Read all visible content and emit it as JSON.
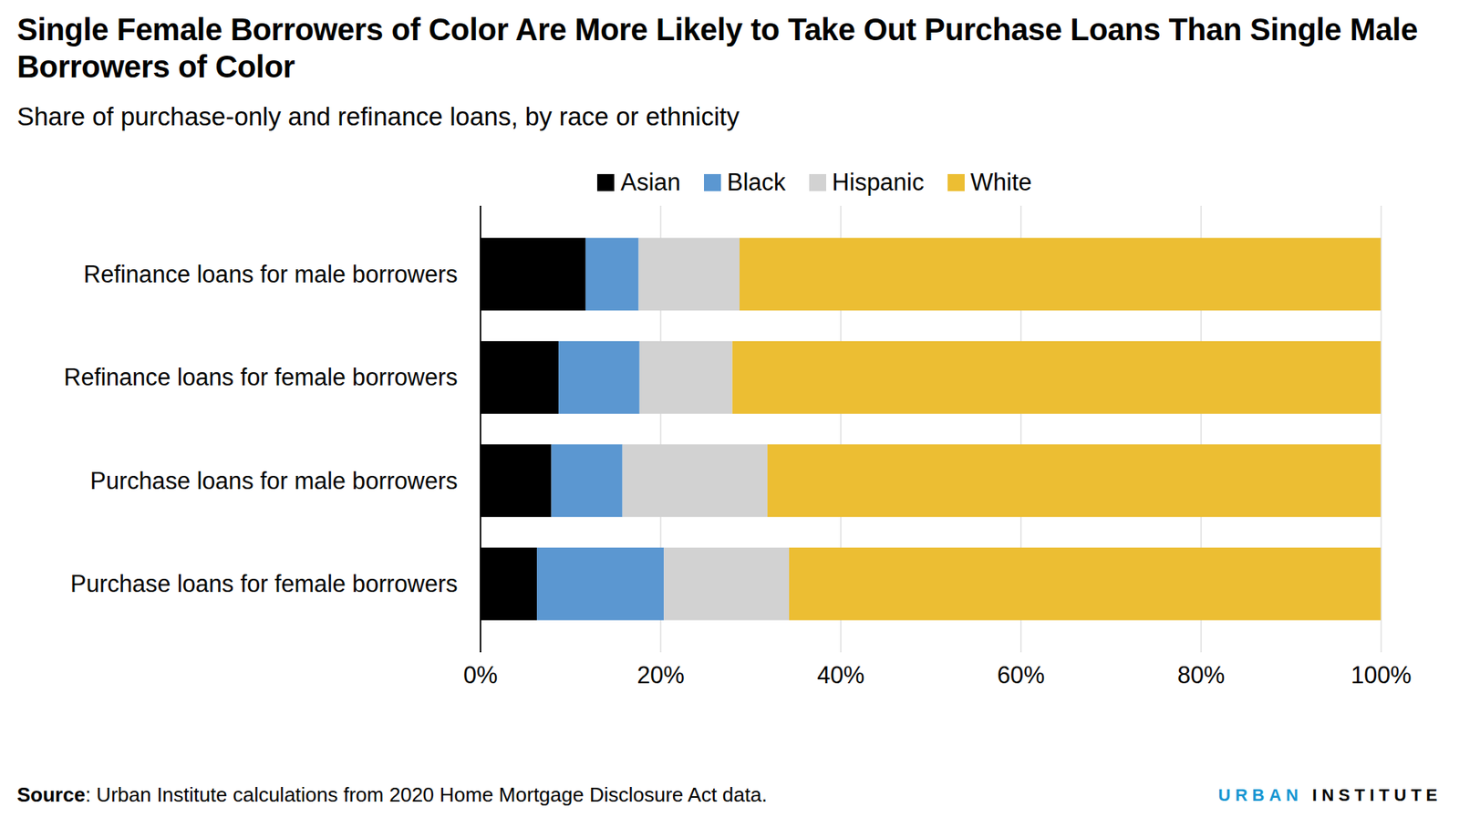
{
  "chart_data": {
    "type": "bar",
    "orientation": "horizontal",
    "stacked": true,
    "grid": true,
    "title": "Single Female Borrowers of Color Are More Likely to Take Out Purchase Loans Than Single Male Borrowers of Color",
    "subtitle": "Share of purchase-only and refinance loans, by race or ethnicity",
    "source": "Source: Urban Institute calculations from 2020 Home Mortgage Disclosure Act data.",
    "logo": "URBAN INSTITUTE",
    "legend": "top",
    "categories": [
      "Refinance loans for male borrowers",
      "Refinance loans for female borrowers",
      "Purchase loans for male borrowers",
      "Purchase loans for female borrowers"
    ],
    "series": [
      {
        "name": "Asian",
        "color": "#000000",
        "values": [
          11.7,
          8.7,
          7.9,
          6.3
        ]
      },
      {
        "name": "Black",
        "color": "#5b97d1",
        "values": [
          5.9,
          9.0,
          7.9,
          14.1
        ]
      },
      {
        "name": "Hispanic",
        "color": "#d2d2d2",
        "values": [
          11.2,
          10.3,
          16.1,
          13.9
        ]
      },
      {
        "name": "White",
        "color": "#ecbe33",
        "values": [
          71.2,
          72.0,
          68.1,
          65.7
        ]
      }
    ],
    "xlim": [
      0,
      100
    ],
    "xticks": [
      {
        "value": 0,
        "label": "0%"
      },
      {
        "value": 20,
        "label": "20%"
      },
      {
        "value": 40,
        "label": "40%"
      },
      {
        "value": 60,
        "label": "60%"
      },
      {
        "value": 80,
        "label": "80%"
      },
      {
        "value": 100,
        "label": "100%"
      }
    ]
  }
}
